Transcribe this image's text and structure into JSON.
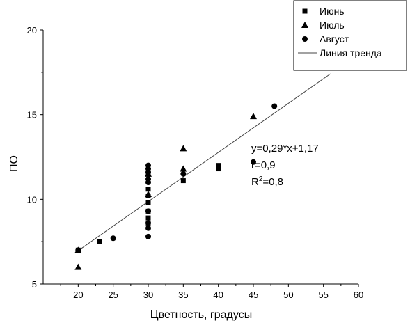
{
  "chart_data": {
    "type": "scatter",
    "xlabel": "Цветность, градусы",
    "ylabel": "ПО",
    "xlim": [
      15,
      60
    ],
    "ylim": [
      5,
      20
    ],
    "x_ticks": [
      20,
      25,
      30,
      35,
      40,
      45,
      50,
      55,
      60
    ],
    "y_ticks": [
      5,
      10,
      15,
      20
    ],
    "legend_position": "top-right",
    "series": [
      {
        "name": "Июнь",
        "marker": "square",
        "points": [
          [
            20,
            7.0
          ],
          [
            23,
            7.5
          ],
          [
            30,
            8.6
          ],
          [
            30,
            8.9
          ],
          [
            30,
            9.3
          ],
          [
            30,
            9.8
          ],
          [
            30,
            10.2
          ],
          [
            30,
            10.6
          ],
          [
            30,
            11.5
          ],
          [
            35,
            11.1
          ],
          [
            40,
            11.8
          ],
          [
            40,
            12.0
          ],
          [
            56,
            18.0
          ]
        ]
      },
      {
        "name": "Июль",
        "marker": "triangle",
        "points": [
          [
            20,
            6.0
          ],
          [
            20,
            7.0
          ],
          [
            30,
            10.3
          ],
          [
            30,
            11.5
          ],
          [
            35,
            11.8
          ],
          [
            35,
            13.0
          ],
          [
            45,
            14.9
          ]
        ]
      },
      {
        "name": "Август",
        "marker": "circle",
        "points": [
          [
            20,
            7.0
          ],
          [
            25,
            7.7
          ],
          [
            30,
            7.8
          ],
          [
            30,
            8.3
          ],
          [
            30,
            8.6
          ],
          [
            30,
            9.3
          ],
          [
            30,
            11.0
          ],
          [
            30,
            11.2
          ],
          [
            30,
            11.6
          ],
          [
            30,
            11.8
          ],
          [
            30,
            12.0
          ],
          [
            35,
            11.5
          ],
          [
            45,
            12.2
          ],
          [
            48,
            15.5
          ]
        ]
      }
    ],
    "trend": {
      "name": "Линия тренда",
      "slope": 0.29,
      "intercept": 1.17,
      "x_range": [
        20,
        56
      ]
    },
    "annotations": {
      "equation": "y=0,29*x+1,17",
      "r": "r=0,9",
      "r2_prefix": "R",
      "r2_sup": "2",
      "r2_suffix": "=0,8"
    },
    "colors": {
      "marker": "#000000",
      "trend": "#444444",
      "axis": "#000000"
    }
  }
}
